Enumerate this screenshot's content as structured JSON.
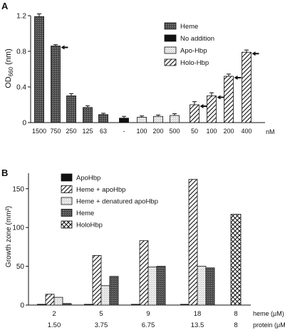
{
  "panels": [
    {
      "id": "A",
      "panel_label": "A",
      "ylabel_main": "OD",
      "ylabel_sub": "660",
      "ylabel_unit": " (nm)",
      "legend": [
        {
          "label": "Heme",
          "pattern": "dark-stipple"
        },
        {
          "label": "No addition",
          "pattern": "black"
        },
        {
          "label": "Apo-Hbp",
          "pattern": "light-stipple"
        },
        {
          "label": "Holo-Hbp",
          "pattern": "diagonal-hatch"
        }
      ],
      "unit_label": "nM"
    },
    {
      "id": "B",
      "panel_label": "B",
      "ylabel": "Growth zone (mm²)",
      "legend": [
        {
          "label": "ApoHbp",
          "pattern": "black"
        },
        {
          "label": "Heme + apoHbp",
          "pattern": "diagonal-hatch"
        },
        {
          "label": "Heme + denatured apoHbp",
          "pattern": "light-stipple"
        },
        {
          "label": "Heme",
          "pattern": "dark-stipple"
        },
        {
          "label": "HoloHbp",
          "pattern": "cross-hatch"
        }
      ],
      "row_labels": [
        "heme (μM)",
        "protein (μM)"
      ]
    }
  ],
  "chart_data": [
    {
      "type": "bar",
      "title": "",
      "ylabel": "OD660 (nm)",
      "xlabel": "nM",
      "ylim": [
        0,
        1.2
      ],
      "yticks": [
        0,
        0.4,
        0.8,
        1.2
      ],
      "ytick_labels": [
        "0",
        "0.4",
        "0.8",
        "1.2"
      ],
      "grid": false,
      "legend_position": "top-right",
      "bars": [
        {
          "category": "1500",
          "series": "Heme",
          "pattern": "dark-stipple",
          "value": 1.19,
          "err": 0.03,
          "arrow": false
        },
        {
          "category": "750",
          "series": "Heme",
          "pattern": "dark-stipple",
          "value": 0.86,
          "err": 0.015,
          "arrow": true
        },
        {
          "category": "250",
          "series": "Heme",
          "pattern": "dark-stipple",
          "value": 0.3,
          "err": 0.025,
          "arrow": false
        },
        {
          "category": "125",
          "series": "Heme",
          "pattern": "dark-stipple",
          "value": 0.17,
          "err": 0.02,
          "arrow": false
        },
        {
          "category": "63",
          "series": "Heme",
          "pattern": "dark-stipple",
          "value": 0.09,
          "err": 0.015,
          "arrow": false
        },
        {
          "category": "-",
          "series": "No addition",
          "pattern": "black",
          "value": 0.05,
          "err": 0.02,
          "arrow": false
        },
        {
          "category": "100",
          "series": "Apo-Hbp",
          "pattern": "light-stipple",
          "value": 0.06,
          "err": 0.015,
          "arrow": false
        },
        {
          "category": "200",
          "series": "Apo-Hbp",
          "pattern": "light-stipple",
          "value": 0.07,
          "err": 0.015,
          "arrow": false
        },
        {
          "category": "500",
          "series": "Apo-Hbp",
          "pattern": "light-stipple",
          "value": 0.08,
          "err": 0.02,
          "arrow": false
        },
        {
          "category": "50",
          "series": "Holo-Hbp",
          "pattern": "diagonal-hatch",
          "value": 0.2,
          "err": 0.035,
          "arrow": true
        },
        {
          "category": "100",
          "series": "Holo-Hbp",
          "pattern": "diagonal-hatch",
          "value": 0.3,
          "err": 0.035,
          "arrow": true
        },
        {
          "category": "200",
          "series": "Holo-Hbp",
          "pattern": "diagonal-hatch",
          "value": 0.52,
          "err": 0.025,
          "arrow": true
        },
        {
          "category": "400",
          "series": "Holo-Hbp",
          "pattern": "diagonal-hatch",
          "value": 0.79,
          "err": 0.025,
          "arrow": true
        }
      ]
    },
    {
      "type": "bar",
      "title": "",
      "ylabel": "Growth zone (mm²)",
      "ylim": [
        0,
        160
      ],
      "yticks": [
        0,
        50,
        100,
        150
      ],
      "ytick_labels": [
        "0",
        "50",
        "100",
        "150"
      ],
      "grid": false,
      "legend_position": "top-left",
      "groups": [
        {
          "heme": "2",
          "protein": "1.50",
          "bars": [
            {
              "series": "ApoHbp",
              "pattern": "black",
              "value": 0
            },
            {
              "series": "Heme + apoHbp",
              "pattern": "diagonal-hatch",
              "value": 14
            },
            {
              "series": "Heme + denatured apoHbp",
              "pattern": "light-stipple",
              "value": 10
            },
            {
              "series": "Heme",
              "pattern": "dark-stipple",
              "value": 2
            }
          ]
        },
        {
          "heme": "5",
          "protein": "3.75",
          "bars": [
            {
              "series": "ApoHbp",
              "pattern": "black",
              "value": 0
            },
            {
              "series": "Heme + apoHbp",
              "pattern": "diagonal-hatch",
              "value": 64
            },
            {
              "series": "Heme + denatured apoHbp",
              "pattern": "light-stipple",
              "value": 25
            },
            {
              "series": "Heme",
              "pattern": "dark-stipple",
              "value": 37
            }
          ]
        },
        {
          "heme": "9",
          "protein": "6.75",
          "bars": [
            {
              "series": "ApoHbp",
              "pattern": "black",
              "value": 0
            },
            {
              "series": "Heme + apoHbp",
              "pattern": "diagonal-hatch",
              "value": 83
            },
            {
              "series": "Heme + denatured apoHbp",
              "pattern": "light-stipple",
              "value": 49
            },
            {
              "series": "Heme",
              "pattern": "dark-stipple",
              "value": 50
            }
          ]
        },
        {
          "heme": "18",
          "protein": "13.5",
          "bars": [
            {
              "series": "ApoHbp",
              "pattern": "black",
              "value": 0
            },
            {
              "series": "Heme + apoHbp",
              "pattern": "diagonal-hatch",
              "value": 162
            },
            {
              "series": "Heme + denatured apoHbp",
              "pattern": "light-stipple",
              "value": 50
            },
            {
              "series": "Heme",
              "pattern": "dark-stipple",
              "value": 48
            }
          ]
        },
        {
          "heme": "8",
          "protein": "8",
          "bars": [
            {
              "series": "HoloHbp",
              "pattern": "cross-hatch",
              "value": 117
            }
          ]
        }
      ]
    }
  ]
}
